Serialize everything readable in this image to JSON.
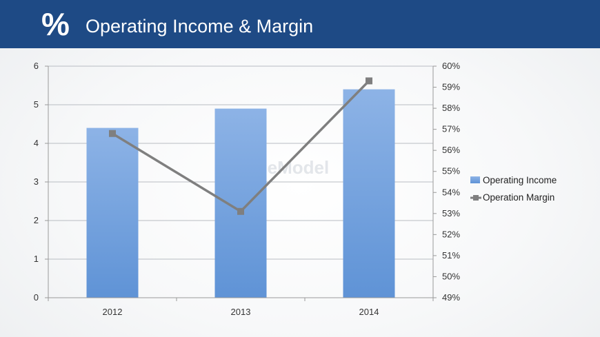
{
  "header": {
    "icon": "%",
    "title": "Operating Income & Margin"
  },
  "watermark": "SlideModel",
  "chart_data": {
    "type": "bar",
    "categories": [
      "2012",
      "2013",
      "2014"
    ],
    "series": [
      {
        "name": "Operating Income",
        "type": "bar",
        "axis": "left",
        "values": [
          4.4,
          4.9,
          5.4
        ],
        "color": "#7ea6df"
      },
      {
        "name": "Operation Margin",
        "type": "line",
        "axis": "right",
        "values": [
          56.8,
          53.1,
          59.3
        ],
        "color": "#7f7f7f"
      }
    ],
    "ylim": [
      0,
      6
    ],
    "y_ticks": [
      "0",
      "1",
      "2",
      "3",
      "4",
      "5",
      "6"
    ],
    "y2lim": [
      49,
      60
    ],
    "y2_ticks": [
      "49%",
      "50%",
      "51%",
      "52%",
      "53%",
      "54%",
      "55%",
      "56%",
      "57%",
      "58%",
      "59%",
      "60%"
    ],
    "grid": true,
    "legend": "right"
  }
}
